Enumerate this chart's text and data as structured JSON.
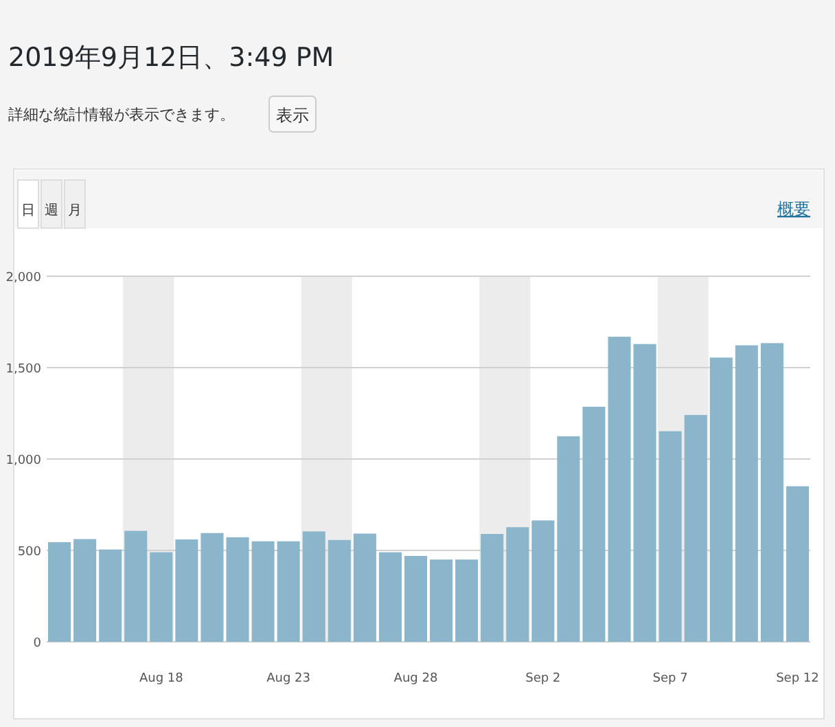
{
  "chart_data": {
    "type": "bar",
    "title": "2019年9月12日、3:49 PM",
    "annotations": [
      "詳細な統計情報が表示できます。",
      "表示",
      "日",
      "週",
      "月",
      "概要"
    ],
    "x": [
      "2019-08-14",
      "2019-08-15",
      "2019-08-16",
      "2019-08-17",
      "2019-08-18",
      "2019-08-19",
      "2019-08-20",
      "2019-08-21",
      "2019-08-22",
      "2019-08-23",
      "2019-08-24",
      "2019-08-25",
      "2019-08-26",
      "2019-08-27",
      "2019-08-28",
      "2019-08-29",
      "2019-08-30",
      "2019-08-31",
      "2019-09-01",
      "2019-09-02",
      "2019-09-03",
      "2019-09-04",
      "2019-09-05",
      "2019-09-06",
      "2019-09-07",
      "2019-09-08",
      "2019-09-09",
      "2019-09-10",
      "2019-09-11",
      "2019-09-12"
    ],
    "values": [
      545,
      562,
      505,
      607,
      490,
      560,
      595,
      572,
      550,
      550,
      604,
      557,
      592,
      490,
      470,
      450,
      450,
      590,
      627,
      664,
      1124,
      1286,
      1669,
      1629,
      1152,
      1241,
      1555,
      1622,
      1634,
      851
    ],
    "color": "#8ab5cb",
    "xlim": [
      "2019-08-13T12:00",
      "2019-09-12T12:00"
    ],
    "xticks": [
      {
        "value": "2019-08-18",
        "label": "Aug 18"
      },
      {
        "value": "2019-08-23",
        "label": "Aug 23"
      },
      {
        "value": "2019-08-28",
        "label": "Aug 28"
      },
      {
        "value": "2019-09-02",
        "label": "Sep 2"
      },
      {
        "value": "2019-09-07",
        "label": "Sep 7"
      },
      {
        "value": "2019-09-12",
        "label": "Sep 12"
      }
    ],
    "ylim": [
      0,
      2000
    ],
    "yticks": [
      0,
      500,
      {
        "value": 1000,
        "label": "1,000"
      },
      {
        "value": 1500,
        "label": "1,500"
      },
      {
        "value": 2000,
        "label": "2,000"
      }
    ],
    "grid": "y",
    "bands": [
      {
        "axis": "x",
        "from": "2019-08-16T12:00",
        "to": "2019-08-18T12:00",
        "color": "#ececec"
      },
      {
        "axis": "x",
        "from": "2019-08-23T12:00",
        "to": "2019-08-25T12:00",
        "color": "#ececec"
      },
      {
        "axis": "x",
        "from": "2019-08-30T12:00",
        "to": "2019-09-01T12:00",
        "color": "#ececec"
      },
      {
        "axis": "x",
        "from": "2019-09-06T12:00",
        "to": "2019-09-08T12:00",
        "color": "#ececec"
      }
    ]
  }
}
